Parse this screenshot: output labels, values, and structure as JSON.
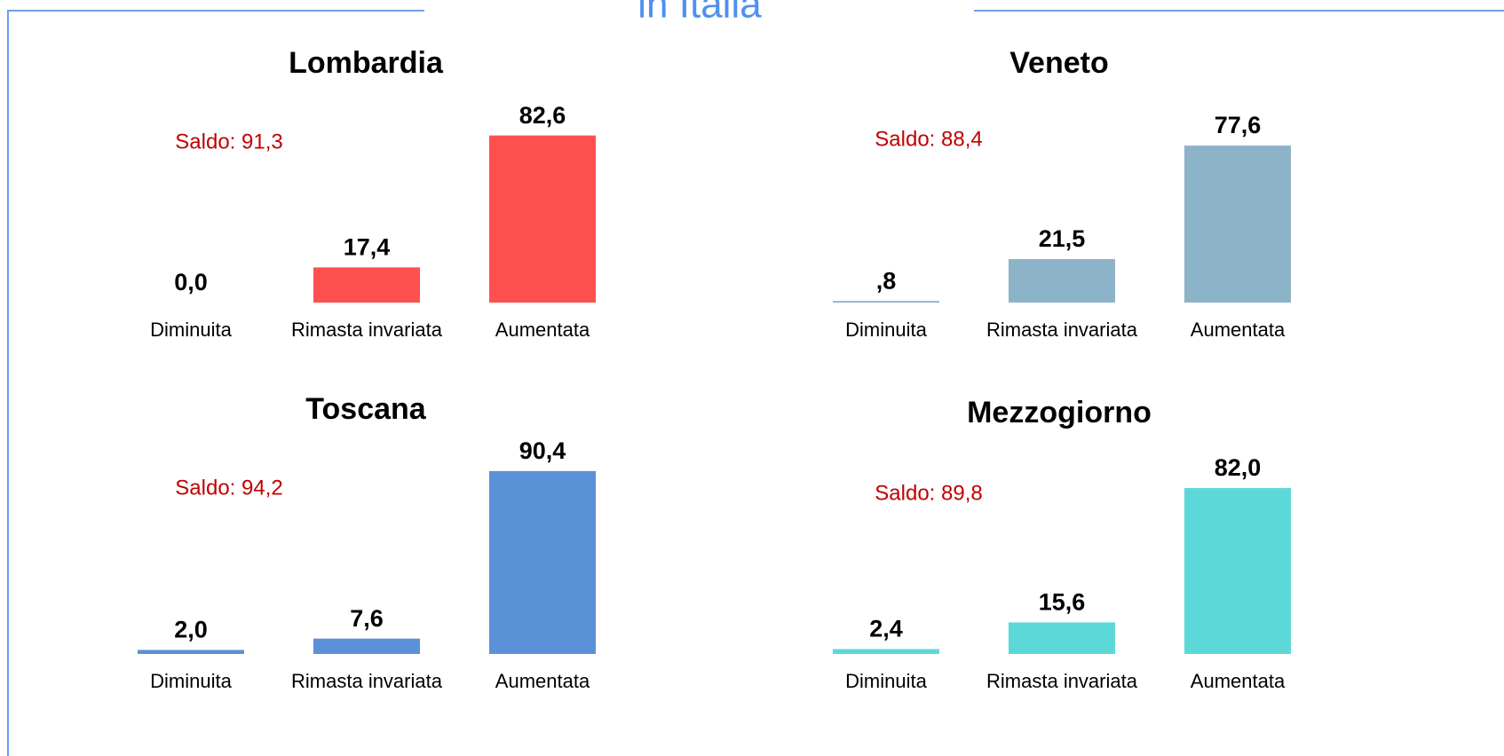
{
  "header": {
    "title": "in Italia"
  },
  "chart_data": [
    {
      "type": "bar",
      "title": "Lombardia",
      "annotation": "Saldo: 91,3",
      "categories": [
        "Diminuita",
        "Rimasta invariata",
        "Aumentata"
      ],
      "values": [
        0,
        17.4,
        82.6
      ],
      "value_labels": [
        "0,0",
        "17,4",
        "82,6"
      ],
      "color": "#ff5050"
    },
    {
      "type": "bar",
      "title": "Veneto",
      "annotation": "Saldo: 88,4",
      "categories": [
        "Diminuita",
        "Rimasta invariata",
        "Aumentata"
      ],
      "values": [
        0.8,
        21.5,
        77.6
      ],
      "value_labels": [
        ",8",
        "21,5",
        "77,6"
      ],
      "color": "#8db3c9"
    },
    {
      "type": "bar",
      "title": "Toscana",
      "annotation": "Saldo: 94,2",
      "categories": [
        "Diminuita",
        "Rimasta invariata",
        "Aumentata"
      ],
      "values": [
        2.0,
        7.6,
        90.4
      ],
      "value_labels": [
        "2,0",
        "7,6",
        "90,4"
      ],
      "color": "#5b91d6"
    },
    {
      "type": "bar",
      "title": "Mezzogiorno",
      "annotation": "Saldo: 89,8",
      "categories": [
        "Diminuita",
        "Rimasta invariata",
        "Aumentata"
      ],
      "values": [
        2.4,
        15.6,
        82.0
      ],
      "value_labels": [
        "2,4",
        "15,6",
        "82,0"
      ],
      "color": "#5dd8d8"
    }
  ]
}
